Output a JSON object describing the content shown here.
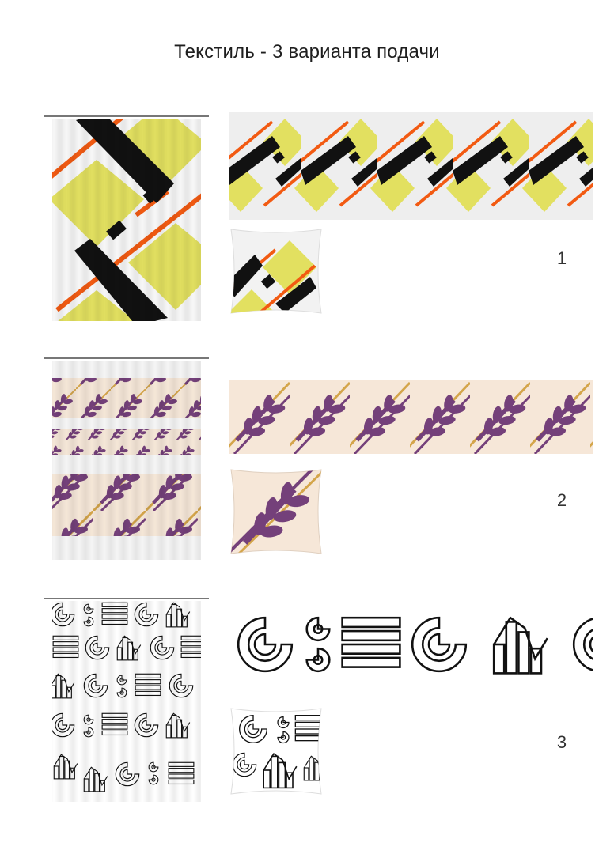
{
  "page": {
    "title": "Текстиль - 3 варианта подачи"
  },
  "variants": [
    {
      "number": "1",
      "theme": "geometric-suprematist",
      "colors": {
        "yellow": "#e2e060",
        "black": "#111111",
        "orange": "#f25a12",
        "band_bg": "#eeeeee"
      }
    },
    {
      "number": "2",
      "theme": "purple-leaf",
      "colors": {
        "purple": "#74407a",
        "gold": "#d4a54a",
        "linen": "#f6e7d8"
      }
    },
    {
      "number": "3",
      "theme": "line-art-charts",
      "colors": {
        "stroke": "#111111",
        "bg": "#ffffff"
      }
    }
  ]
}
